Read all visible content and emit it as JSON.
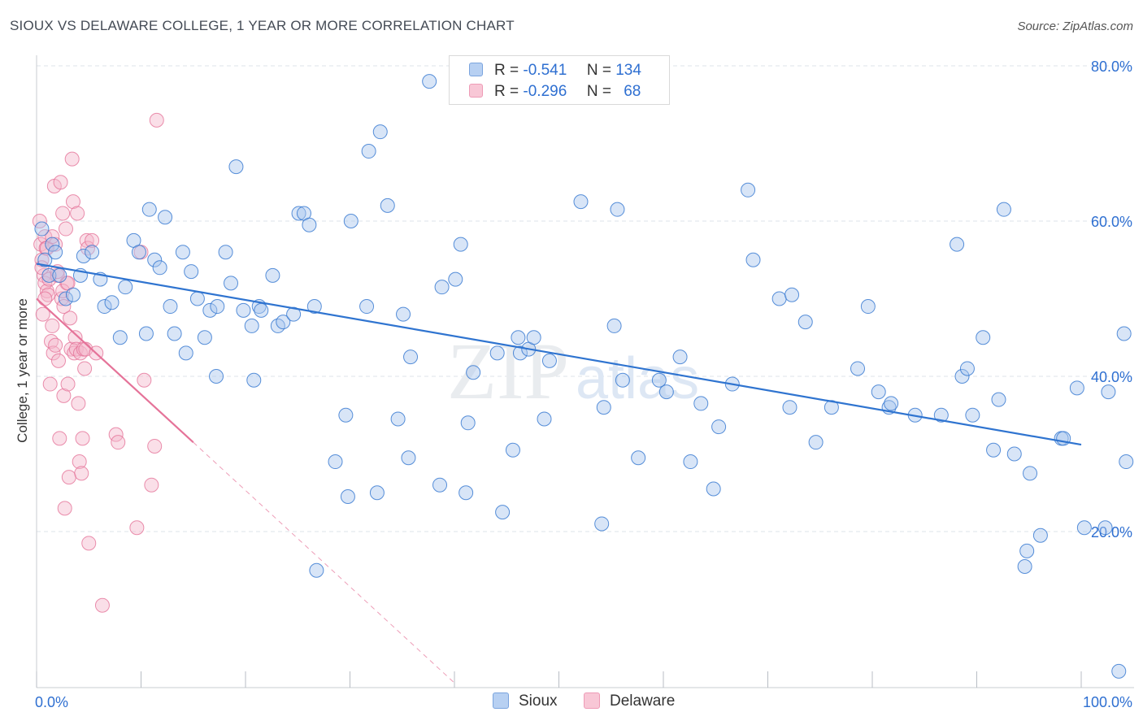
{
  "title": "SIOUX VS DELAWARE COLLEGE, 1 YEAR OR MORE CORRELATION CHART",
  "source": "Source: ZipAtlas.com",
  "watermark": {
    "zip": "ZIP",
    "atlas": "atlas"
  },
  "colors": {
    "sioux": "#2f74d0",
    "sioux_fill": "#a9c6ee",
    "delaware": "#e57399",
    "delaware_fill": "#f5b8cb",
    "grid": "#dde3ea",
    "axis_text": "#2e6fd1"
  },
  "legend": {
    "rows": [
      {
        "r_label": "R =",
        "r_value": "-0.541",
        "n_label": "N =",
        "n_value": "134"
      },
      {
        "r_label": "R =",
        "r_value": "-0.296",
        "n_label": "N =",
        "n_value": "68"
      }
    ]
  },
  "bottom_legend": {
    "sioux": "Sioux",
    "delaware": "Delaware"
  },
  "chart_data": {
    "type": "scatter",
    "title": "SIOUX VS DELAWARE COLLEGE, 1 YEAR OR MORE CORRELATION CHART",
    "xlabel": "",
    "ylabel": "College, 1 year or more",
    "xlim": [
      0,
      100
    ],
    "ylim": [
      0,
      82
    ],
    "x_tick_labels": [
      "0.0%",
      "100.0%"
    ],
    "y_ticks": [
      20,
      40,
      60,
      80
    ],
    "y_tick_labels": [
      "20.0%",
      "40.0%",
      "60.0%",
      "80.0%"
    ],
    "grid": true,
    "series": [
      {
        "name": "Sioux",
        "r": -0.541,
        "n": 134,
        "trend": {
          "x": [
            0,
            100
          ],
          "y": [
            54.5,
            31.2
          ]
        },
        "points": [
          [
            0.5,
            59
          ],
          [
            0.8,
            55
          ],
          [
            1.2,
            53
          ],
          [
            1.5,
            57
          ],
          [
            1.8,
            56
          ],
          [
            2.2,
            53
          ],
          [
            2.8,
            50
          ],
          [
            3.5,
            50.5
          ],
          [
            4.2,
            53
          ],
          [
            4.5,
            55.5
          ],
          [
            5.3,
            56
          ],
          [
            6.1,
            52.5
          ],
          [
            6.5,
            49
          ],
          [
            7.2,
            49.5
          ],
          [
            8,
            45
          ],
          [
            8.5,
            51.5
          ],
          [
            9.3,
            57.5
          ],
          [
            9.8,
            56
          ],
          [
            10.5,
            45.5
          ],
          [
            10.8,
            61.5
          ],
          [
            11.3,
            55
          ],
          [
            11.8,
            54
          ],
          [
            12.3,
            60.5
          ],
          [
            12.8,
            49
          ],
          [
            13.2,
            45.5
          ],
          [
            14,
            56
          ],
          [
            14.3,
            43
          ],
          [
            14.8,
            53.5
          ],
          [
            15.4,
            50
          ],
          [
            16.1,
            45
          ],
          [
            16.6,
            48.5
          ],
          [
            17.2,
            40
          ],
          [
            17.3,
            49
          ],
          [
            18.1,
            56
          ],
          [
            18.6,
            52
          ],
          [
            19.1,
            67
          ],
          [
            19.8,
            48.5
          ],
          [
            20.6,
            46.5
          ],
          [
            20.8,
            39.5
          ],
          [
            21.3,
            49
          ],
          [
            21.5,
            48.5
          ],
          [
            22.6,
            53
          ],
          [
            23.1,
            46.5
          ],
          [
            23.6,
            47
          ],
          [
            24.6,
            48
          ],
          [
            25.1,
            61
          ],
          [
            25.6,
            61
          ],
          [
            26.1,
            59.5
          ],
          [
            26.6,
            49
          ],
          [
            26.8,
            15
          ],
          [
            28.6,
            29
          ],
          [
            29.6,
            35
          ],
          [
            29.8,
            24.5
          ],
          [
            30.1,
            60
          ],
          [
            31.6,
            49
          ],
          [
            31.8,
            69
          ],
          [
            32.6,
            25
          ],
          [
            32.9,
            71.5
          ],
          [
            33.6,
            62
          ],
          [
            34.6,
            34.5
          ],
          [
            35.1,
            48
          ],
          [
            35.6,
            29.5
          ],
          [
            35.8,
            42.5
          ],
          [
            37.6,
            78
          ],
          [
            38.6,
            26
          ],
          [
            38.8,
            51.5
          ],
          [
            40.1,
            52.5
          ],
          [
            40.6,
            57
          ],
          [
            41.1,
            25
          ],
          [
            41.3,
            34
          ],
          [
            41.8,
            40.5
          ],
          [
            44.1,
            43
          ],
          [
            44.6,
            22.5
          ],
          [
            45.6,
            30.5
          ],
          [
            46.1,
            45
          ],
          [
            46.3,
            43
          ],
          [
            47.1,
            43.5
          ],
          [
            47.6,
            45
          ],
          [
            48.6,
            34.5
          ],
          [
            49.1,
            42
          ],
          [
            52.1,
            62.5
          ],
          [
            54.1,
            21
          ],
          [
            54.3,
            36
          ],
          [
            55.3,
            46.5
          ],
          [
            55.6,
            61.5
          ],
          [
            56.1,
            39.5
          ],
          [
            57.6,
            29.5
          ],
          [
            59.6,
            39.5
          ],
          [
            60.3,
            38
          ],
          [
            61.6,
            42.5
          ],
          [
            62.6,
            29
          ],
          [
            63.6,
            36.5
          ],
          [
            64.8,
            25.5
          ],
          [
            65.3,
            33.5
          ],
          [
            66.6,
            39
          ],
          [
            68.1,
            64
          ],
          [
            68.6,
            55
          ],
          [
            71.1,
            50
          ],
          [
            72.1,
            36
          ],
          [
            72.3,
            50.5
          ],
          [
            73.6,
            47
          ],
          [
            74.6,
            31.5
          ],
          [
            76.1,
            36
          ],
          [
            78.6,
            41
          ],
          [
            79.6,
            49
          ],
          [
            80.6,
            38
          ],
          [
            81.6,
            36
          ],
          [
            81.8,
            36.5
          ],
          [
            84.1,
            35
          ],
          [
            86.6,
            35
          ],
          [
            88.1,
            57
          ],
          [
            88.6,
            40
          ],
          [
            89.1,
            41
          ],
          [
            89.6,
            35
          ],
          [
            90.6,
            45
          ],
          [
            91.6,
            30.5
          ],
          [
            92.1,
            37
          ],
          [
            92.6,
            61.5
          ],
          [
            93.6,
            30
          ],
          [
            94.6,
            15.5
          ],
          [
            94.8,
            17.5
          ],
          [
            95.1,
            27.5
          ],
          [
            96.1,
            19.5
          ],
          [
            98.1,
            32
          ],
          [
            98.3,
            32
          ],
          [
            99.6,
            38.5
          ],
          [
            100.3,
            20.5
          ],
          [
            102.3,
            20.5
          ],
          [
            102.6,
            38
          ],
          [
            103.6,
            2
          ],
          [
            104.1,
            45.5
          ],
          [
            104.3,
            29
          ]
        ]
      },
      {
        "name": "Delaware",
        "r": -0.296,
        "n": 68,
        "trend": {
          "x": [
            0,
            15
          ],
          "y": [
            50,
            31.5
          ]
        },
        "trend_extension": {
          "x": [
            15,
            40
          ],
          "y": [
            31.5,
            0.5
          ]
        },
        "points": [
          [
            0.3,
            60
          ],
          [
            0.4,
            57
          ],
          [
            0.5,
            55
          ],
          [
            0.6,
            48
          ],
          [
            0.7,
            53
          ],
          [
            0.8,
            52
          ],
          [
            0.8,
            58
          ],
          [
            0.9,
            56.5
          ],
          [
            1,
            51
          ],
          [
            1.1,
            50.5
          ],
          [
            1.2,
            52.5
          ],
          [
            1.3,
            39
          ],
          [
            1.4,
            44.5
          ],
          [
            1.5,
            46.5
          ],
          [
            1.6,
            43
          ],
          [
            1.7,
            64.5
          ],
          [
            1.8,
            57
          ],
          [
            2,
            53
          ],
          [
            2.1,
            42
          ],
          [
            2.2,
            32
          ],
          [
            2.3,
            65
          ],
          [
            2.4,
            50
          ],
          [
            2.5,
            61
          ],
          [
            2.6,
            37.5
          ],
          [
            2.7,
            23
          ],
          [
            2.8,
            59
          ],
          [
            2.9,
            52
          ],
          [
            3,
            39
          ],
          [
            3.1,
            27
          ],
          [
            3.2,
            47.5
          ],
          [
            3.3,
            43.5
          ],
          [
            3.4,
            68
          ],
          [
            3.5,
            62.5
          ],
          [
            3.6,
            43
          ],
          [
            3.7,
            45
          ],
          [
            3.8,
            43.5
          ],
          [
            3.9,
            61
          ],
          [
            4,
            36.5
          ],
          [
            4.1,
            29
          ],
          [
            4.2,
            43
          ],
          [
            4.3,
            27.5
          ],
          [
            4.4,
            32
          ],
          [
            4.5,
            43.5
          ],
          [
            4.6,
            41
          ],
          [
            4.7,
            43.5
          ],
          [
            4.8,
            57.5
          ],
          [
            4.9,
            56.5
          ],
          [
            5,
            18.5
          ],
          [
            5.3,
            57.5
          ],
          [
            5.7,
            43
          ],
          [
            6.3,
            10.5
          ],
          [
            7.6,
            32.5
          ],
          [
            7.8,
            31.5
          ],
          [
            9.6,
            20.5
          ],
          [
            10,
            56
          ],
          [
            10.3,
            39.5
          ],
          [
            11,
            26
          ],
          [
            11.3,
            31
          ],
          [
            11.5,
            73
          ],
          [
            0.5,
            54
          ],
          [
            1,
            56.5
          ],
          [
            1.5,
            58
          ],
          [
            2,
            53.5
          ],
          [
            2.5,
            51
          ],
          [
            3,
            52
          ],
          [
            0.8,
            50
          ],
          [
            1.8,
            44
          ],
          [
            2.6,
            49
          ]
        ]
      }
    ]
  }
}
